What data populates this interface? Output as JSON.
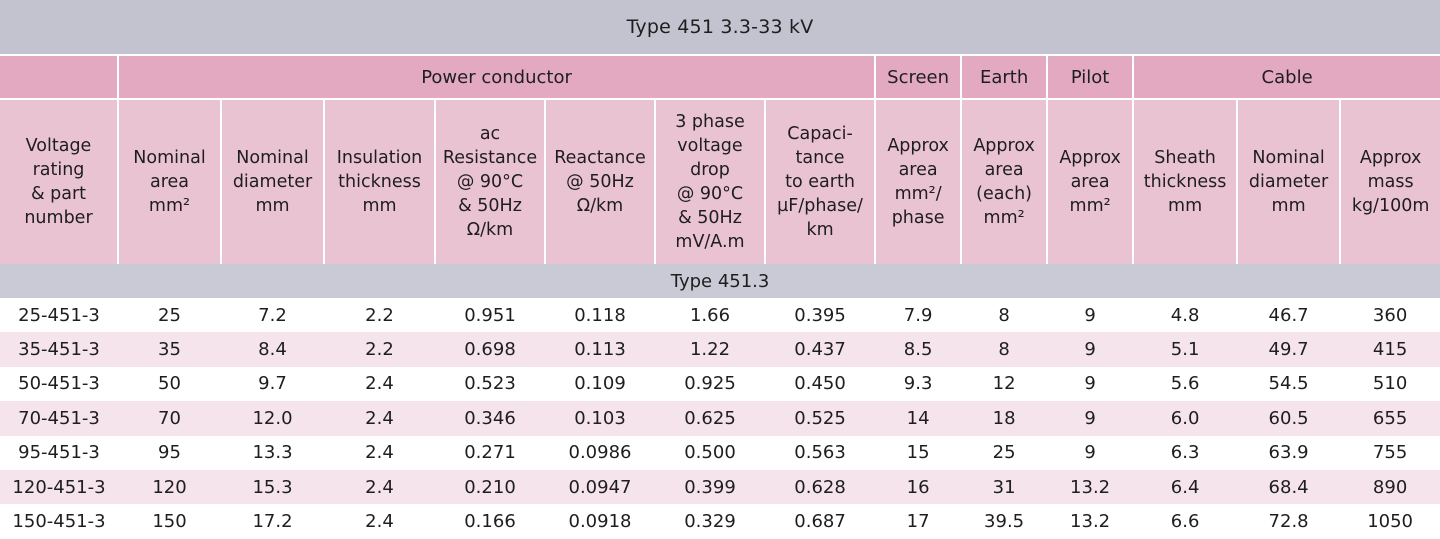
{
  "title": "Type 451  3.3-33 kV",
  "groups": {
    "power_conductor": "Power conductor",
    "screen": "Screen",
    "earth": "Earth",
    "pilot": "Pilot",
    "cable": "Cable"
  },
  "columns": [
    "Voltage\nrating\n& part\nnumber",
    "Nominal\narea\nmm²",
    "Nominal\ndiameter\nmm",
    "Insulation\nthickness\nmm",
    "ac\nResistance\n@ 90°C\n& 50Hz\nΩ/km",
    "Reactance\n@ 50Hz\nΩ/km",
    "3 phase\nvoltage\ndrop\n@ 90°C\n& 50Hz\nmV/A.m",
    "Capaci-\ntance\nto earth\nµF/phase/\nkm",
    "Approx\narea\nmm²/\nphase",
    "Approx\narea\n(each)\nmm²",
    "Approx\narea\nmm²",
    "Sheath\nthickness\nmm",
    "Nominal\ndiameter\nmm",
    "Approx\nmass\nkg/100m"
  ],
  "section_label": "Type 451.3",
  "rows": [
    [
      "25-451-3",
      "25",
      "7.2",
      "2.2",
      "0.951",
      "0.118",
      "1.66",
      "0.395",
      "7.9",
      "8",
      "9",
      "4.8",
      "46.7",
      "360"
    ],
    [
      "35-451-3",
      "35",
      "8.4",
      "2.2",
      "0.698",
      "0.113",
      "1.22",
      "0.437",
      "8.5",
      "8",
      "9",
      "5.1",
      "49.7",
      "415"
    ],
    [
      "50-451-3",
      "50",
      "9.7",
      "2.4",
      "0.523",
      "0.109",
      "0.925",
      "0.450",
      "9.3",
      "12",
      "9",
      "5.6",
      "54.5",
      "510"
    ],
    [
      "70-451-3",
      "70",
      "12.0",
      "2.4",
      "0.346",
      "0.103",
      "0.625",
      "0.525",
      "14",
      "18",
      "9",
      "6.0",
      "60.5",
      "655"
    ],
    [
      "95-451-3",
      "95",
      "13.3",
      "2.4",
      "0.271",
      "0.0986",
      "0.500",
      "0.563",
      "15",
      "25",
      "9",
      "6.3",
      "63.9",
      "755"
    ],
    [
      "120-451-3",
      "120",
      "15.3",
      "2.4",
      "0.210",
      "0.0947",
      "0.399",
      "0.628",
      "16",
      "31",
      "13.2",
      "6.4",
      "68.4",
      "890"
    ],
    [
      "150-451-3",
      "150",
      "17.2",
      "2.4",
      "0.166",
      "0.0918",
      "0.329",
      "0.687",
      "17",
      "39.5",
      "13.2",
      "6.6",
      "72.8",
      "1050"
    ]
  ]
}
